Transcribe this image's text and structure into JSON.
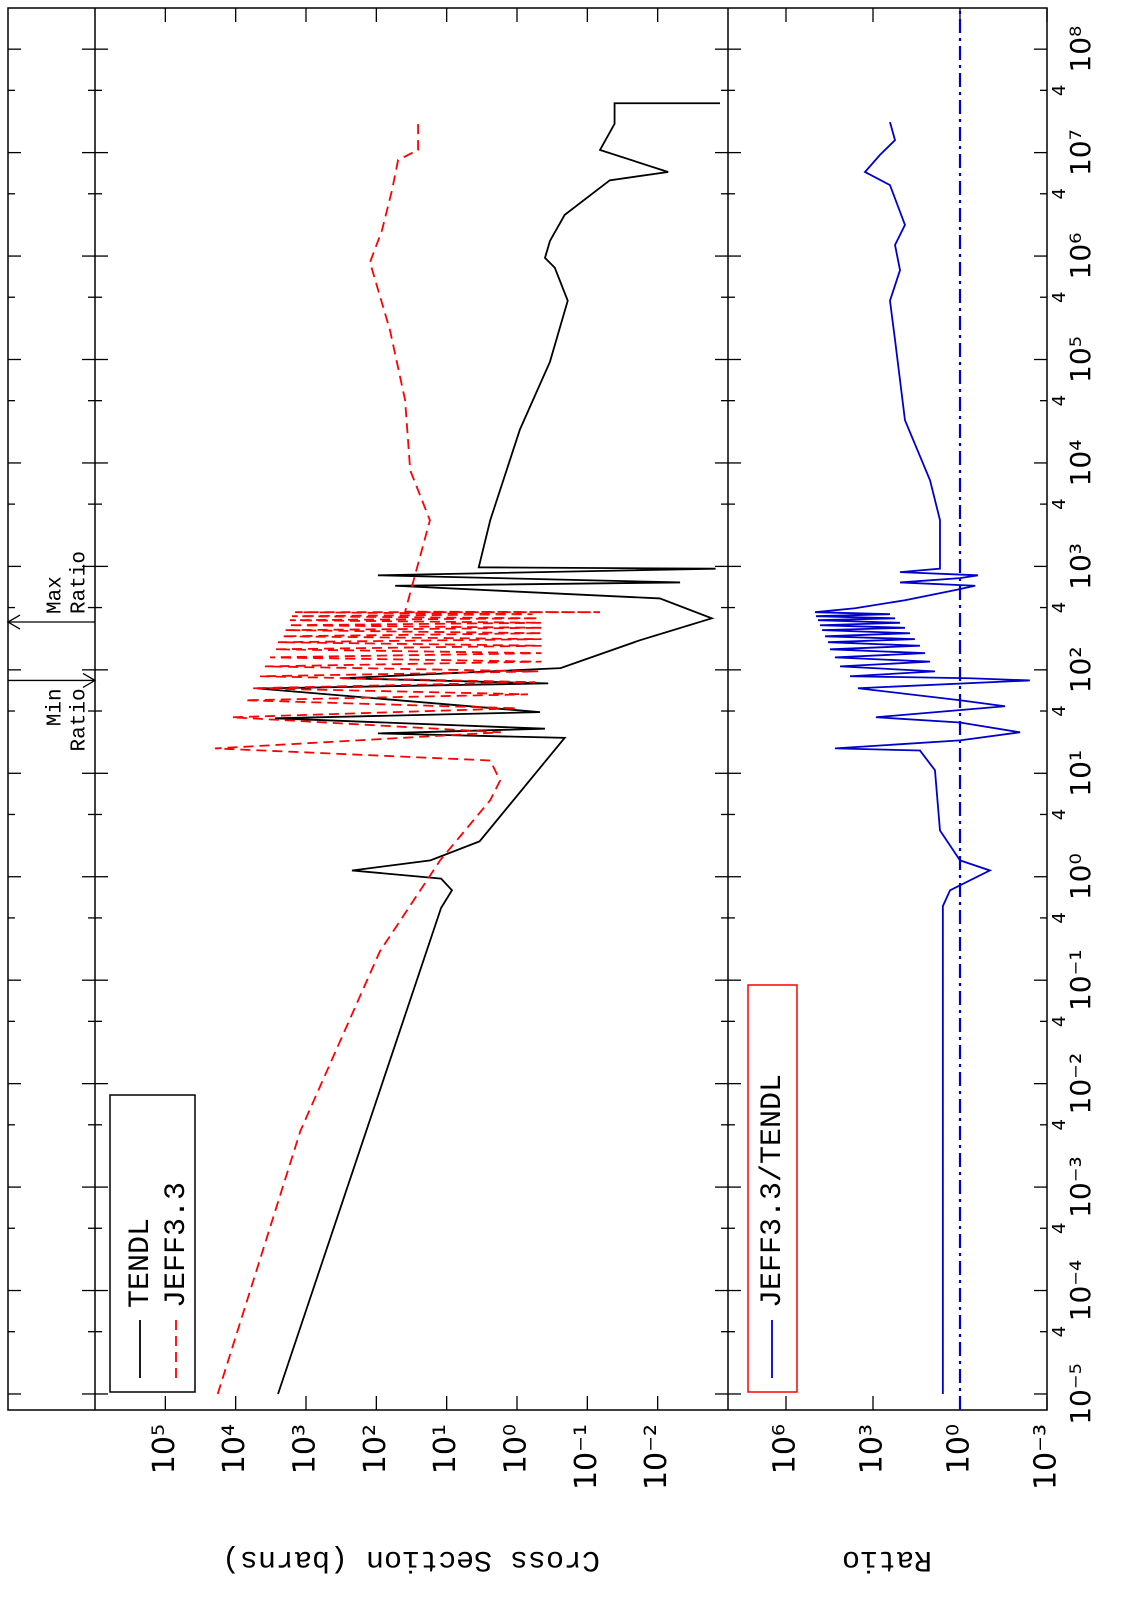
{
  "chart_data": [
    {
      "type": "line",
      "ylabel": "Cross Section (barns)",
      "log_x": true,
      "log_y": true,
      "xlim": [
        7e-06,
        250000000.0
      ],
      "ylim": [
        0.001,
        1000000
      ],
      "yticks": [
        {
          "value": 0.01,
          "label": "10⁻²"
        },
        {
          "value": 0.1,
          "label": "10⁻¹"
        },
        {
          "value": 1,
          "label": "10⁰"
        },
        {
          "value": 10,
          "label": "10¹"
        },
        {
          "value": 100,
          "label": "10²"
        },
        {
          "value": 1000,
          "label": "10³"
        },
        {
          "value": 10000,
          "label": "10⁴"
        },
        {
          "value": 100000,
          "label": "10⁵"
        }
      ],
      "legend": "upper left",
      "series": [
        {
          "name": "TENDL",
          "color": "#000000",
          "dash": "solid",
          "x": [
            1e-05,
            0.5,
            0.74,
            0.96,
            1.15,
            1.44,
            2.2,
            22,
            24.3,
            27,
            34,
            39,
            66,
            74,
            83,
            104,
            193,
            315,
            490,
            650,
            700,
            820,
            950,
            980,
            2800,
            21000,
            95000,
            370000,
            770000,
            960000,
            1400000,
            2500000,
            5400000,
            6500000,
            10600000,
            19000000,
            30000000,
            30000000
          ],
          "values": [
            2500,
            12,
            8.4,
            12,
            222,
            17,
            3.4,
            0.21,
            95,
            0.4,
            2760,
            0.47,
            4800,
            0.36,
            307,
            0.24,
            0.018,
            0.0017,
            0.0093,
            54,
            0.0048,
            95,
            0.0015,
            3.5,
            2.4,
            0.91,
            0.34,
            0.19,
            0.29,
            0.4,
            0.34,
            0.21,
            0.048,
            0.0071,
            0.066,
            0.041,
            0.041,
            0.0013
          ]
        },
        {
          "name": "JEFF3.3",
          "color": "#ff0000",
          "dash": "dashed",
          "x": [
            1e-05,
            0.0035,
            0.19,
            1.44,
            5.5,
            8.5,
            13.3,
            17.4,
            24.9,
            34.8,
            42.5,
            50.8,
            58,
            66.4,
            76,
            86.7,
            96.6,
            108,
            120,
            132,
            145,
            158,
            171,
            185,
            198,
            211,
            226,
            242,
            255,
            270,
            285,
            302,
            315,
            330,
            345,
            361,
            361,
            365,
            2790,
            8500,
            40500,
            192000,
            870000,
            1780000,
            4300000,
            8500000,
            10600000,
            19700000
          ],
          "values": [
            18000,
            1200,
            89,
            12.4,
            2.4,
            1.74,
            2.4,
            19700,
            1.7,
            11300,
            1.0,
            7360,
            0.7,
            5860,
            0.55,
            4510,
            0.5,
            3830,
            0.45,
            3250,
            0.45,
            2760,
            0.45,
            2500,
            0.45,
            2190,
            0.45,
            1990,
            0.45,
            1800,
            0.45,
            1690,
            0.5,
            1580,
            0.6,
            1430,
            0.066,
            39,
            17.3,
            33,
            39,
            64,
            123,
            83,
            60,
            49,
            25.5,
            25.5
          ]
        }
      ],
      "annotations": [
        {
          "x": 79,
          "lines": [
            "Min",
            "Ratio"
          ],
          "arrow": "down"
        },
        {
          "x": 290,
          "lines": [
            "Max",
            "Ratio"
          ],
          "arrow": "up"
        }
      ]
    },
    {
      "type": "line",
      "ylabel": "Ratio",
      "log_x": true,
      "log_y": true,
      "xlim": [
        7e-06,
        250000000.0
      ],
      "ylim": [
        0.001,
        100000000
      ],
      "xticks": [
        {
          "value": 1e-05,
          "label": "10⁻⁵"
        },
        {
          "value": 4e-05,
          "label": "4"
        },
        {
          "value": 0.0001,
          "label": "10⁻⁴"
        },
        {
          "value": 0.0004,
          "label": "4"
        },
        {
          "value": 0.001,
          "label": "10⁻³"
        },
        {
          "value": 0.004,
          "label": "4"
        },
        {
          "value": 0.01,
          "label": "10⁻²"
        },
        {
          "value": 0.04,
          "label": "4"
        },
        {
          "value": 0.1,
          "label": "10⁻¹"
        },
        {
          "value": 0.4,
          "label": "4"
        },
        {
          "value": 1,
          "label": "10⁰"
        },
        {
          "value": 4,
          "label": "4"
        },
        {
          "value": 10,
          "label": "10¹"
        },
        {
          "value": 40,
          "label": "4"
        },
        {
          "value": 100,
          "label": "10²"
        },
        {
          "value": 400,
          "label": "4"
        },
        {
          "value": 1000,
          "label": "10³"
        },
        {
          "value": 4000,
          "label": "4"
        },
        {
          "value": 10000,
          "label": "10⁴"
        },
        {
          "value": 40000,
          "label": "4"
        },
        {
          "value": 100000,
          "label": "10⁵"
        },
        {
          "value": 400000,
          "label": "4"
        },
        {
          "value": 1000000,
          "label": "10⁶"
        },
        {
          "value": 4000000,
          "label": "4"
        },
        {
          "value": 10000000,
          "label": "10⁷"
        },
        {
          "value": 40000000,
          "label": "4"
        },
        {
          "value": 100000000,
          "label": "10⁸"
        }
      ],
      "yticks": [
        {
          "value": 0.001,
          "label": "10⁻³"
        },
        {
          "value": 1,
          "label": "10⁰"
        },
        {
          "value": 1000,
          "label": "10³"
        },
        {
          "value": 1000000,
          "label": "10⁶"
        }
      ],
      "legend": "upper left",
      "hline": 1,
      "series": [
        {
          "name": "JEFF3.3/TENDL",
          "color": "#0000cc",
          "dash": "solid",
          "x": [
            1e-05,
            0.52,
            0.74,
            1.15,
            1.44,
            2.8,
            10.7,
            16.6,
            17.4,
            20.8,
            24.9,
            31,
            34.8,
            44.5,
            50.8,
            66.4,
            79,
            83,
            86.7,
            96.6,
            108,
            120,
            132,
            145,
            158,
            171,
            185,
            198,
            211,
            226,
            242,
            255,
            270,
            285,
            302,
            315,
            330,
            345,
            361,
            394,
            471,
            589,
            650,
            700,
            770,
            820,
            880,
            950,
            2800,
            6800,
            25900,
            155000,
            370000,
            730000,
            1280000,
            2000000,
            4850000,
            6500000,
            9500000,
            13200000,
            19700000
          ],
          "values": [
            3.9,
            3.9,
            2.2,
            0.093,
            1,
            4.9,
            7.3,
            24,
            20500,
            1,
            0.0085,
            1,
            790,
            0.028,
            1,
            3300,
            0.0039,
            0.46,
            6200,
            7.3,
            13700,
            10.8,
            20500,
            16,
            30400,
            24,
            35500,
            36,
            45200,
            53,
            57400,
            79,
            67300,
            117,
            78900,
            174,
            92500,
            260,
            100000,
            4180,
            79,
            1.48,
            0.3,
            117,
            1,
            0.24,
            117,
            4.9,
            4.9,
            10.8,
            79,
            174,
            260,
            117,
            174,
            79,
            260,
            1890,
            575,
            174,
            260
          ]
        }
      ]
    }
  ]
}
